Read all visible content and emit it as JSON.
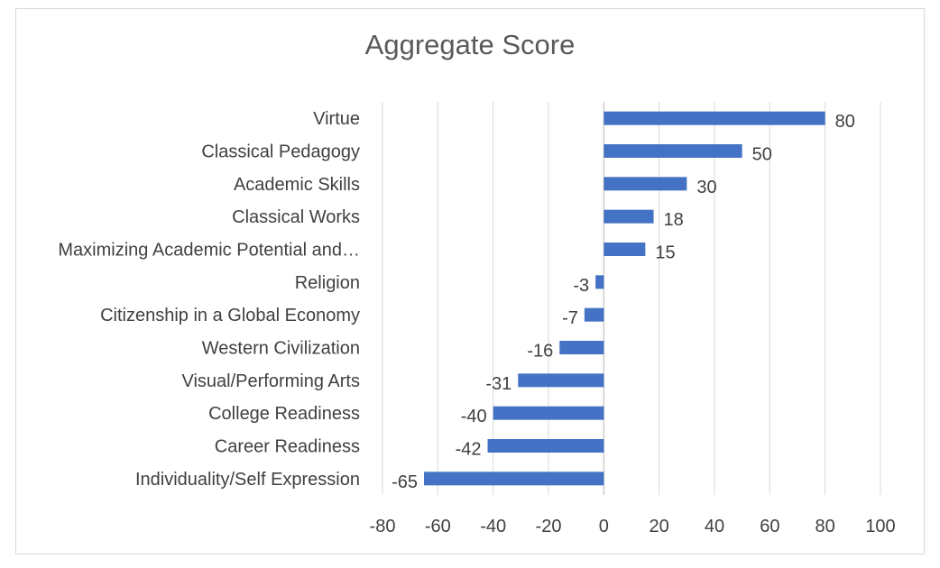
{
  "chart_data": {
    "type": "bar",
    "orientation": "horizontal",
    "title": "Aggregate Score",
    "xlabel": "",
    "ylabel": "",
    "xlim": [
      -80,
      100
    ],
    "xticks": [
      -80,
      -60,
      -40,
      -20,
      0,
      20,
      40,
      60,
      80,
      100
    ],
    "grid": true,
    "legend": "none",
    "bar_color": "#4472c4",
    "categories": [
      "Virtue",
      "Classical Pedagogy",
      "Academic Skills",
      "Classical Works",
      "Maximizing Academic Potential and…",
      "Religion",
      "Citizenship in a Global Economy",
      "Western Civilization",
      "Visual/Performing Arts",
      "College Readiness",
      "Career Readiness",
      "Individuality/Self Expression"
    ],
    "values": [
      80,
      50,
      30,
      18,
      15,
      -3,
      -7,
      -16,
      -31,
      -40,
      -42,
      -65
    ]
  }
}
